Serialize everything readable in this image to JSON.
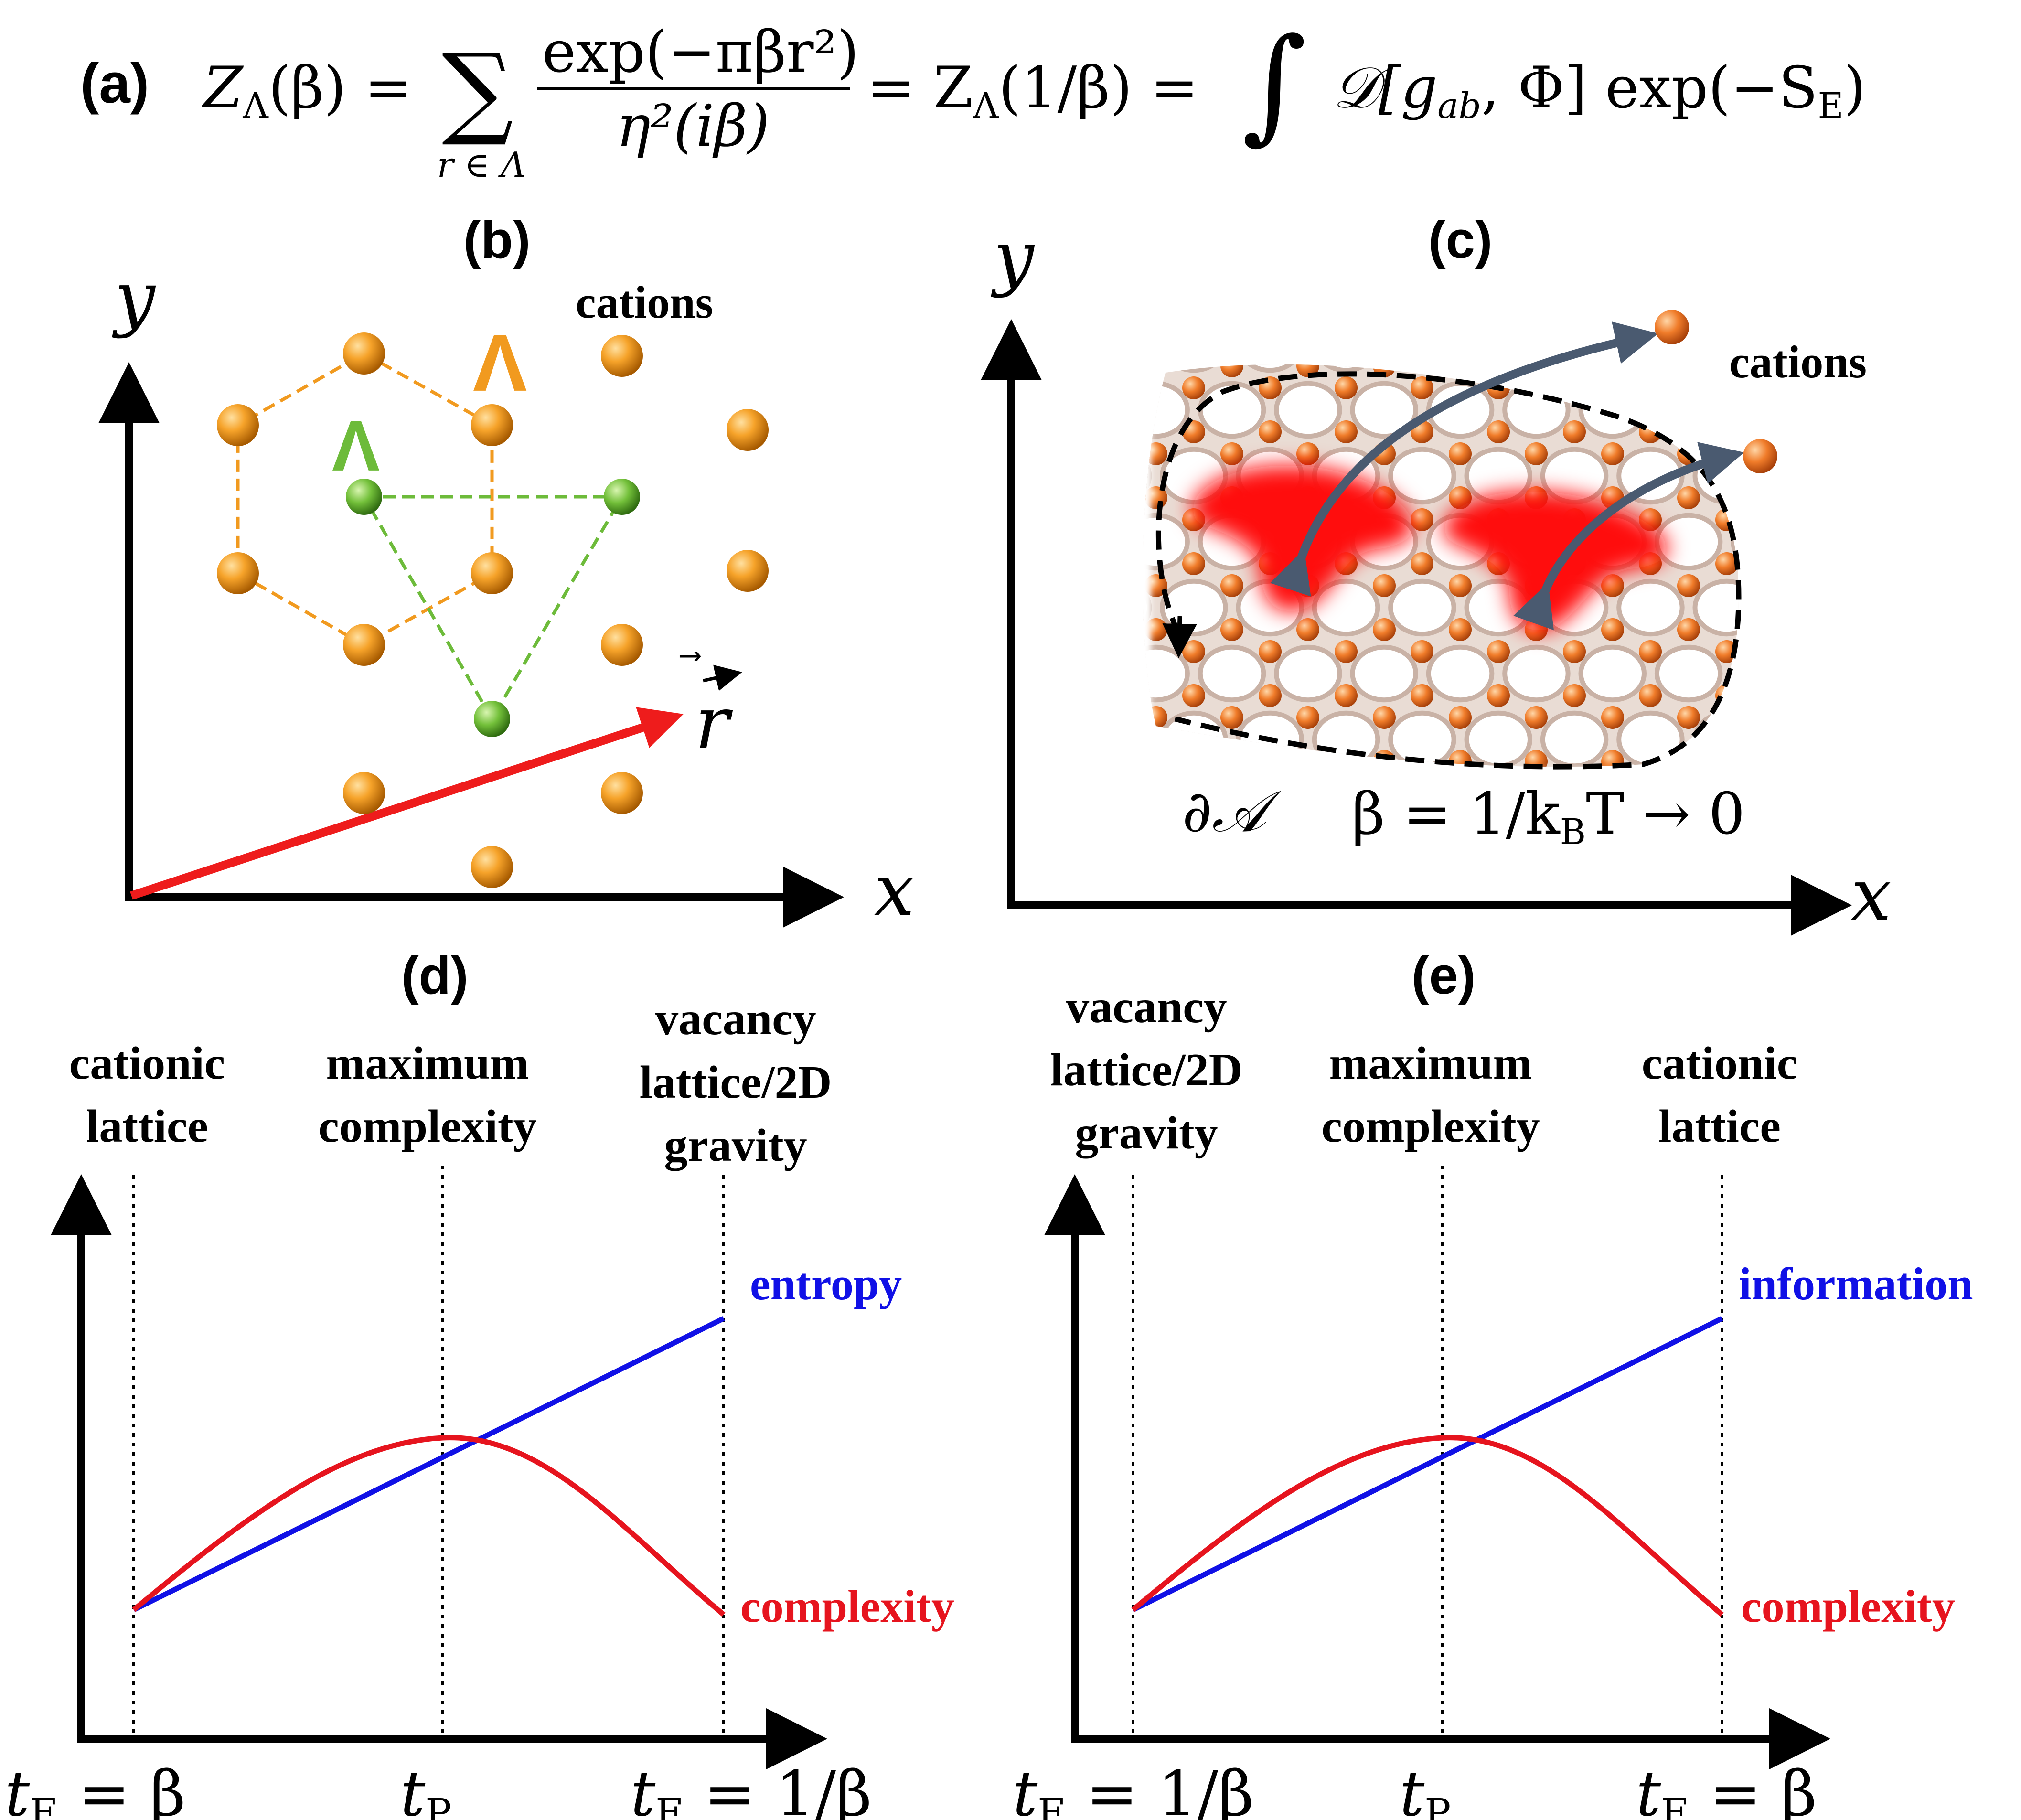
{
  "panel_labels": {
    "a": "(a)",
    "b": "(b)",
    "c": "(c)",
    "d": "(d)",
    "e": "(e)"
  },
  "equation": {
    "lhs": "Z",
    "lhs_sub": "Λ",
    "lhs_arg": "(β) = ",
    "sum": "∑",
    "sum_sub": "r ∈ Λ",
    "numerator": "exp(−πβr²)",
    "denominator": "η²(iβ)",
    "middle": "= Z",
    "middle_sub": "Λ",
    "middle_arg": "(1/β)  =",
    "integral": "∫",
    "integrand": "𝒟[g",
    "integrand_sub": "ab",
    "integrand_rest": ", Φ] exp(−S",
    "action_sub": "E",
    "close": ")"
  },
  "panel_b": {
    "y_axis": "y",
    "x_axis": "x",
    "vector": "r",
    "cations_label": "cations",
    "lambda_orange": "Λ",
    "lambda_green": "Λ",
    "colors": {
      "orange": "#f19a1f",
      "green": "#6dbb3a",
      "vector": "#ee1c1c"
    }
  },
  "panel_c": {
    "y_axis": "y",
    "x_axis": "x",
    "cations_label": "cations",
    "boundary_label": "∂𝒜",
    "beta_label": "β = 1/k",
    "beta_sub": "B",
    "beta_rest": "T → 0"
  },
  "panel_d": {
    "labels": {
      "left": [
        "cationic",
        "lattice"
      ],
      "mid": [
        "maximum",
        "complexity"
      ],
      "right": [
        "vacancy",
        "lattice/2D",
        "gravity"
      ]
    },
    "line_label": "entropy",
    "curve_label": "complexity",
    "x_left": "t",
    "x_left_sub": "E",
    "x_left_rest": " = β",
    "x_mid": "t",
    "x_mid_sub": "P",
    "x_right": "t",
    "x_right_sub": "E",
    "x_right_rest": " = 1/β"
  },
  "panel_e": {
    "labels": {
      "left": [
        "vacancy",
        "lattice/2D",
        "gravity"
      ],
      "mid": [
        "maximum",
        "complexity"
      ],
      "right": [
        "cationic",
        "lattice"
      ]
    },
    "line_label": "information",
    "curve_label": "complexity",
    "x_left": "t",
    "x_left_sub": "E",
    "x_left_rest": " = 1/β",
    "x_mid": "t",
    "x_mid_sub": "P",
    "x_right": "t",
    "x_right_sub": "E",
    "x_right_rest": " = β"
  },
  "colors": {
    "blue": "#1010e6",
    "red": "#e6141e",
    "axis": "#000000"
  }
}
